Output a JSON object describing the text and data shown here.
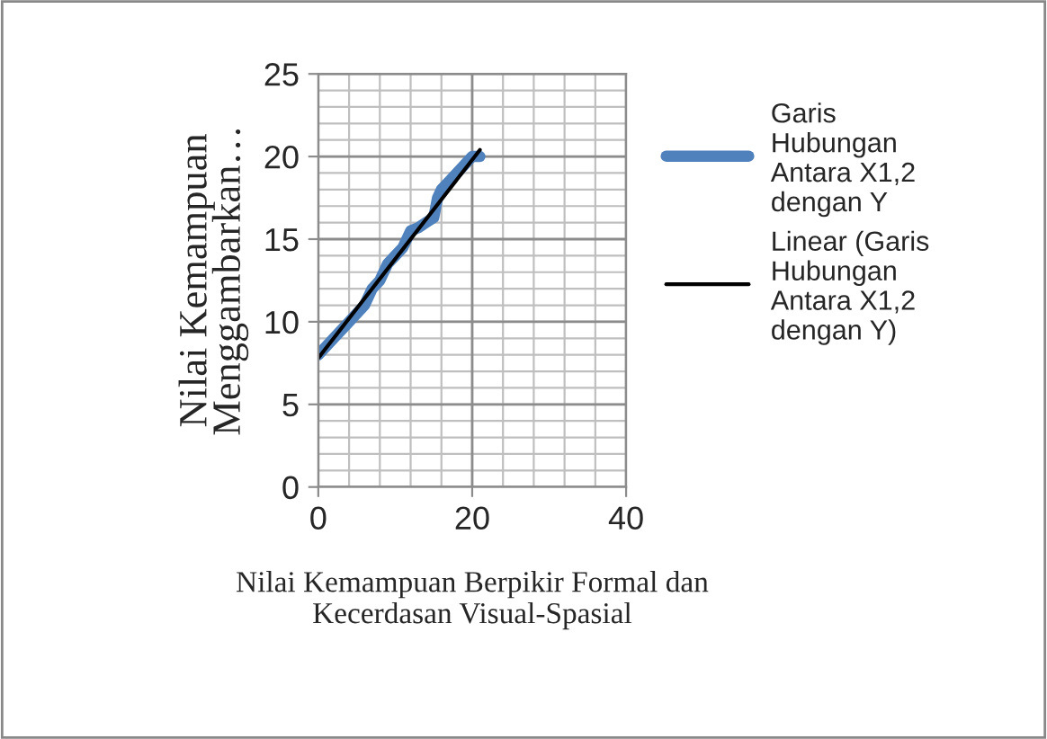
{
  "chart_data": {
    "type": "line",
    "xlabel": "Nilai Kemampuan Berpikir Formal dan\nKecerdasan Visual-Spasial",
    "ylabel": "Nilai Kemampuan\nMenggambarkan…",
    "xlim": [
      0,
      40
    ],
    "xticks": [
      0,
      20,
      40
    ],
    "ylim": [
      0,
      25
    ],
    "yticks": [
      0,
      5,
      10,
      15,
      20,
      25
    ],
    "grid": true,
    "legend": "right",
    "series": [
      {
        "name": "Garis Hubungan Antara X1,2 dengan Y",
        "color": "#4f81bd",
        "x": [
          0,
          2,
          4,
          6,
          7,
          8,
          9,
          10,
          11,
          12,
          13,
          14,
          15,
          15.5,
          16,
          17,
          18,
          19,
          20,
          21
        ],
        "values": [
          8,
          9,
          10,
          11,
          12,
          12.5,
          13.5,
          14,
          14.5,
          15.5,
          15.7,
          16,
          16.3,
          17.5,
          18,
          18.5,
          19,
          19.5,
          20,
          20
        ]
      },
      {
        "name": "Linear (Garis Hubungan Antara X1,2 dengan Y)",
        "color": "#000000",
        "x": [
          0,
          21
        ],
        "values": [
          7.8,
          20.4
        ]
      }
    ]
  }
}
